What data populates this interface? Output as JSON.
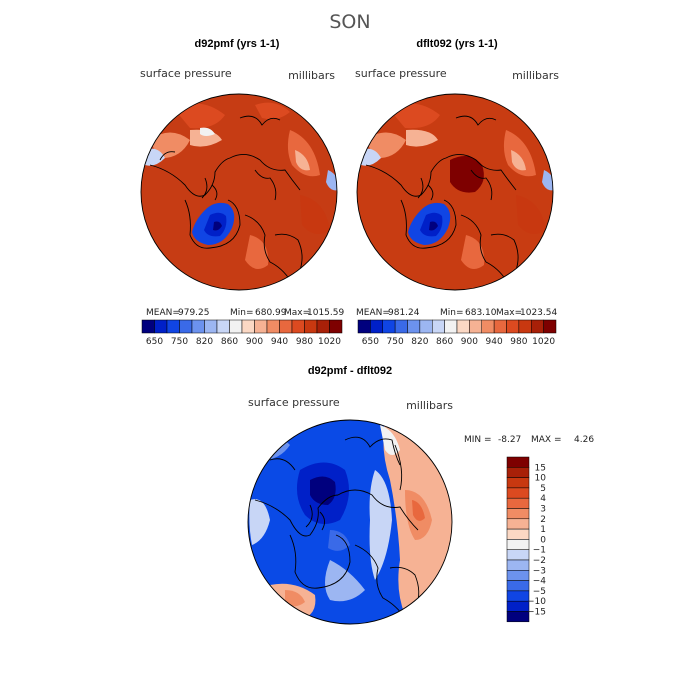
{
  "figure_title": "SON",
  "colors": {
    "levels": [
      "#00007e",
      "#0020c8",
      "#1045e4",
      "#3a6ae8",
      "#6c92ee",
      "#9cb6f2",
      "#c8d6f6",
      "#f2f2f2",
      "#fbd8c4",
      "#f6b294",
      "#f08c64",
      "#e8683e",
      "#dc4a20",
      "#c83810",
      "#a82008",
      "#7e0000"
    ],
    "panel_a_base": "#c63c14",
    "panel_b_base": "#c83c12",
    "panel_c_base": "#0a4ae6",
    "outline": "#000000"
  },
  "chart_data": [
    {
      "type": "heatmap",
      "projection": "polar-stereographic-north",
      "title": "d92pmf (yrs 1-1)",
      "variable_label": "surface pressure",
      "units_label": "millibars",
      "stats": {
        "mean_label": "MEAN=",
        "mean": "979.25",
        "min_label": "Min=",
        "min": "680.99",
        "max_label": "Max=",
        "max": "1015.59"
      },
      "colorbar": {
        "orientation": "horizontal",
        "tick_labels": [
          "650",
          "750",
          "820",
          "860",
          "900",
          "940",
          "980",
          "1020"
        ]
      }
    },
    {
      "type": "heatmap",
      "projection": "polar-stereographic-north",
      "title": "dflt092 (yrs 1-1)",
      "variable_label": "surface pressure",
      "units_label": "millibars",
      "stats": {
        "mean_label": "MEAN=",
        "mean": "981.24",
        "min_label": "Min=",
        "min": "683.10",
        "max_label": "Max=",
        "max": "1023.54"
      },
      "colorbar": {
        "orientation": "horizontal",
        "tick_labels": [
          "650",
          "750",
          "820",
          "860",
          "900",
          "940",
          "980",
          "1020"
        ]
      }
    },
    {
      "type": "heatmap",
      "projection": "polar-stereographic-north",
      "title": "d92pmf - dflt092",
      "variable_label": "surface pressure",
      "units_label": "millibars",
      "stats": {
        "min_label": "MIN =",
        "min": "-8.27",
        "max_label": "MAX =",
        "max": "4.26"
      },
      "colorbar": {
        "orientation": "vertical",
        "tick_labels": [
          "15",
          "10",
          "5",
          "4",
          "3",
          "2",
          "1",
          "0",
          "−1",
          "−2",
          "−3",
          "−4",
          "−5",
          "−10",
          "−15"
        ]
      }
    }
  ]
}
